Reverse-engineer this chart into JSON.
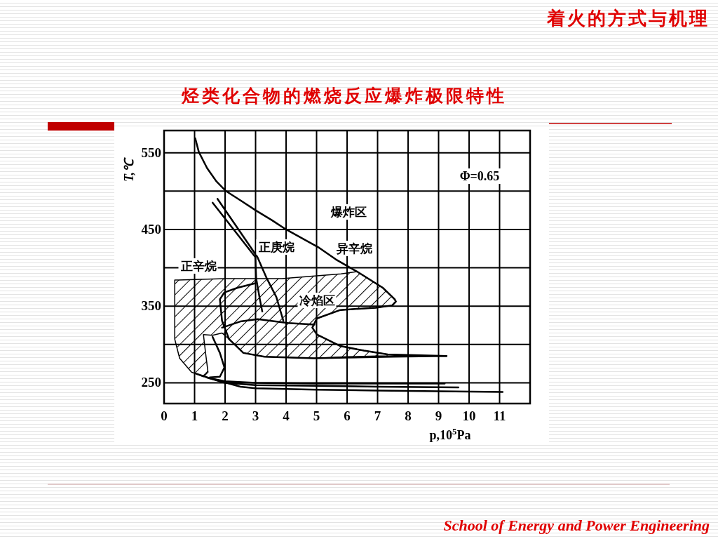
{
  "chart_data": {
    "type": "line",
    "title": "烃类化合物的燃烧反应爆炸极限特性",
    "xlabel": "p,10$^{5}$Pa",
    "ylabel": "T,℃",
    "xlim": [
      0,
      12
    ],
    "ylim": [
      223,
      579
    ],
    "xticks": [
      0,
      1,
      2,
      3,
      4,
      5,
      6,
      7,
      8,
      9,
      10,
      11
    ],
    "yticks": [
      250,
      {
        "value": 300,
        "label": null
      },
      350,
      {
        "value": 400,
        "label": null
      },
      450,
      {
        "value": 500,
        "label": null
      },
      550
    ],
    "grid": true,
    "annotations": [
      "着火的方式与机理",
      "School of Energy and Power Engineering",
      "Φ=0.65",
      "爆炸区",
      "异辛烷",
      "正庚烷",
      "正辛烷",
      "冷焰区"
    ],
    "series": [
      {
        "type": "area",
        "color": "#000000",
        "x": [
          0.35,
          2.0,
          3.86,
          5.8,
          6.33,
          7.17,
          7.56,
          7.6,
          7.48,
          6.94,
          5.78,
          5.01,
          4.86,
          5.01,
          5.78,
          6.55,
          7.33,
          8.0,
          7.0,
          6.0,
          4.92,
          3.29,
          2.6,
          2.13,
          1.9,
          1.59,
          1.29,
          1.36,
          1.44,
          1.29,
          0.9,
          0.51,
          0.35
        ],
        "values": [
          384,
          386,
          386,
          392,
          395,
          374,
          359,
          356,
          351,
          348,
          345,
          334,
          322,
          313,
          298,
          292,
          287,
          285,
          285,
          284,
          282,
          284,
          289,
          307,
          315,
          312,
          313,
          289,
          264,
          258,
          264,
          282,
          307
        ]
      },
      {
        "color": "#000000",
        "x": [
          1.02,
          1.14,
          1.41,
          1.71,
          2.03,
          2.54,
          3.0,
          3.54,
          4.0,
          4.55,
          5.09,
          5.63,
          6.33,
          7.17,
          7.56,
          7.6,
          7.48,
          6.94,
          5.78,
          5.01,
          4.86,
          5.01,
          5.78,
          6.55,
          7.33,
          9.26
        ],
        "values": [
          569,
          551,
          530,
          513,
          500,
          487,
          475,
          462,
          450,
          438,
          426,
          411,
          395,
          374,
          359,
          356,
          351,
          348,
          345,
          334,
          322,
          313,
          298,
          292,
          287,
          285
        ]
      },
      {
        "color": "#000000",
        "x": [
          3.0,
          2.41,
          1.98,
          1.83,
          1.9,
          2.13,
          2.6,
          3.29,
          4.92,
          6.0,
          7.5,
          9.26
        ],
        "values": [
          380,
          374,
          368,
          359,
          331,
          307,
          289,
          284,
          282,
          283,
          284,
          285
        ]
      },
      {
        "color": "#000000",
        "x": [
          1.9,
          2.5,
          3.07,
          4.06,
          4.93
        ],
        "values": [
          322,
          330,
          333,
          328,
          326
        ]
      },
      {
        "color": "#000000",
        "x": [
          1.59,
          2.99,
          3.02,
          3.14,
          3.22
        ],
        "values": [
          485,
          414,
          386,
          359,
          343
        ]
      },
      {
        "color": "#000000",
        "x": [
          1.75,
          3.06,
          3.37,
          3.68,
          3.91
        ],
        "values": [
          490,
          414,
          386,
          362,
          331
        ]
      },
      {
        "color": "#000000",
        "x": [
          1.59,
          1.83,
          1.98,
          1.83,
          1.5
        ],
        "values": [
          310,
          289,
          270,
          258,
          257
        ]
      },
      {
        "color": "#000000",
        "x": [
          1.05,
          1.5,
          2.0,
          3.0,
          5.0,
          7.0,
          9.2
        ],
        "values": [
          262,
          256,
          252,
          250,
          249,
          249,
          249
        ]
      },
      {
        "color": "#000000",
        "x": [
          1.4,
          2.0,
          3.0,
          5.0,
          7.0,
          9.65
        ],
        "values": [
          257,
          250,
          247,
          246,
          245,
          244
        ]
      },
      {
        "color": "#000000",
        "x": [
          1.6,
          2.5,
          3.0,
          5.0,
          7.0,
          9.0,
          11.1
        ],
        "values": [
          255,
          245,
          243,
          241,
          240,
          239,
          238
        ]
      }
    ]
  }
}
